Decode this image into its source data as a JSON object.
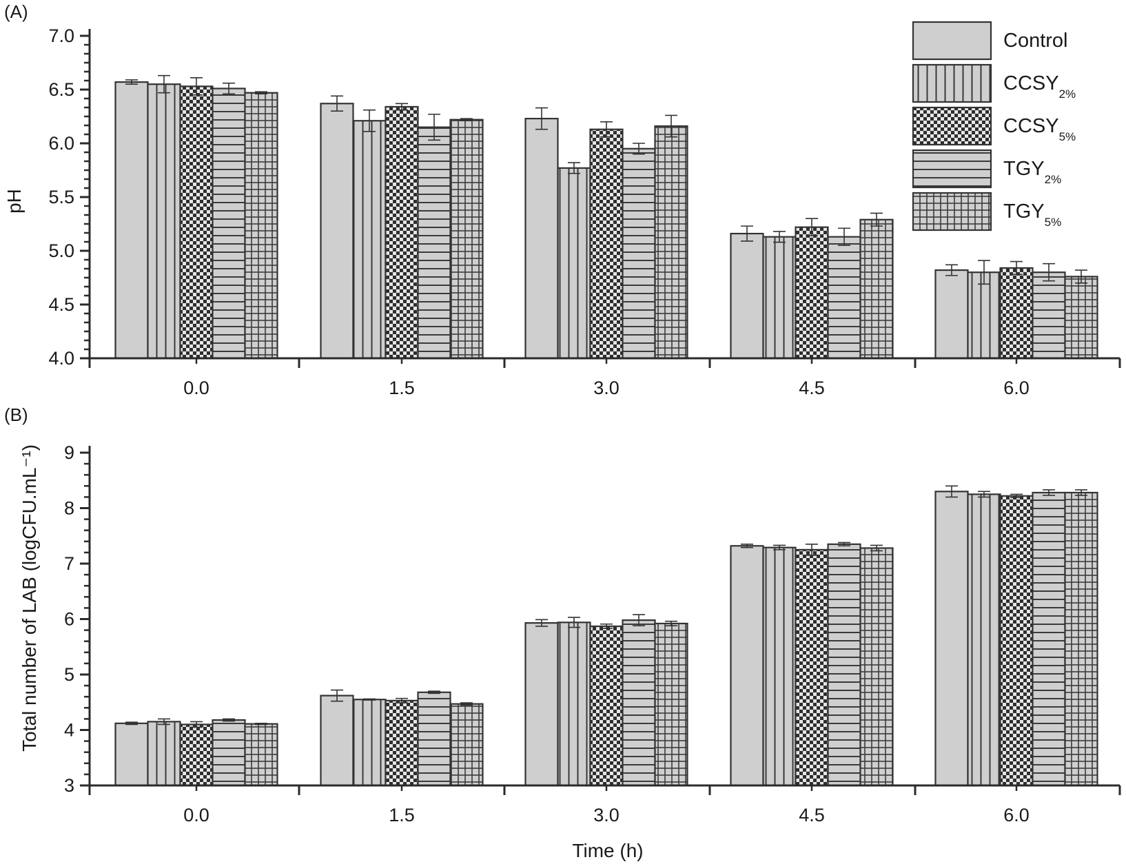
{
  "colors": {
    "bar_fill": "#cfcfcf",
    "stroke": "#333333",
    "axis": "#2a2a2a",
    "text": "#1a1a1a"
  },
  "legend": [
    {
      "label": "Control",
      "sub": "",
      "pattern": "plain"
    },
    {
      "label": "CCSY",
      "sub": "2%",
      "pattern": "vstripes"
    },
    {
      "label": "CCSY",
      "sub": "5%",
      "pattern": "checker"
    },
    {
      "label": "TGY",
      "sub": "2%",
      "pattern": "hstripes"
    },
    {
      "label": "TGY",
      "sub": "5%",
      "pattern": "grid"
    }
  ],
  "chart_data": [
    {
      "type": "bar",
      "panel_label": "(A)",
      "categories": [
        "0.0",
        "1.5",
        "3.0",
        "4.5",
        "6.0"
      ],
      "ylabel": "pH",
      "xlabel": "",
      "ylim": [
        4.0,
        7.0
      ],
      "yticks": [
        "4.0",
        "4.5",
        "5.0",
        "5.5",
        "6.0",
        "6.5",
        "7.0"
      ],
      "series": [
        {
          "name": "Control",
          "values": [
            6.57,
            6.37,
            6.23,
            5.16,
            4.82
          ],
          "errors": [
            0.02,
            0.07,
            0.1,
            0.07,
            0.05
          ]
        },
        {
          "name": "CCSY2%",
          "values": [
            6.55,
            6.21,
            5.77,
            5.13,
            4.8
          ],
          "errors": [
            0.08,
            0.1,
            0.05,
            0.05,
            0.11
          ]
        },
        {
          "name": "CCSY5%",
          "values": [
            6.53,
            6.34,
            6.13,
            5.22,
            4.84
          ],
          "errors": [
            0.08,
            0.03,
            0.07,
            0.08,
            0.06
          ]
        },
        {
          "name": "TGY2%",
          "values": [
            6.51,
            6.15,
            5.95,
            5.13,
            4.8
          ],
          "errors": [
            0.05,
            0.12,
            0.05,
            0.08,
            0.08
          ]
        },
        {
          "name": "TGY5%",
          "values": [
            6.47,
            6.22,
            6.16,
            5.29,
            4.76
          ],
          "errors": [
            0.01,
            0.01,
            0.1,
            0.06,
            0.06
          ]
        }
      ]
    },
    {
      "type": "bar",
      "panel_label": "(B)",
      "categories": [
        "0.0",
        "1.5",
        "3.0",
        "4.5",
        "6.0"
      ],
      "ylabel": "Total number of LAB (logCFU.mL⁻¹)",
      "xlabel": "Time (h)",
      "ylim": [
        3,
        9
      ],
      "yticks": [
        "3",
        "4",
        "5",
        "6",
        "7",
        "8",
        "9"
      ],
      "series": [
        {
          "name": "Control",
          "values": [
            4.12,
            4.62,
            5.93,
            7.32,
            8.3
          ],
          "errors": [
            0.02,
            0.1,
            0.06,
            0.03,
            0.1
          ]
        },
        {
          "name": "CCSY2%",
          "values": [
            4.15,
            4.55,
            5.94,
            7.29,
            8.25
          ],
          "errors": [
            0.05,
            0.01,
            0.09,
            0.04,
            0.05
          ]
        },
        {
          "name": "CCSY5%",
          "values": [
            4.1,
            4.53,
            5.87,
            7.25,
            8.22
          ],
          "errors": [
            0.05,
            0.04,
            0.04,
            0.1,
            0.03
          ]
        },
        {
          "name": "TGY2%",
          "values": [
            4.18,
            4.68,
            5.98,
            7.35,
            8.28
          ],
          "errors": [
            0.02,
            0.02,
            0.1,
            0.03,
            0.05
          ]
        },
        {
          "name": "TGY5%",
          "values": [
            4.11,
            4.47,
            5.92,
            7.28,
            8.28
          ],
          "errors": [
            0.01,
            0.02,
            0.04,
            0.05,
            0.05
          ]
        }
      ]
    }
  ]
}
